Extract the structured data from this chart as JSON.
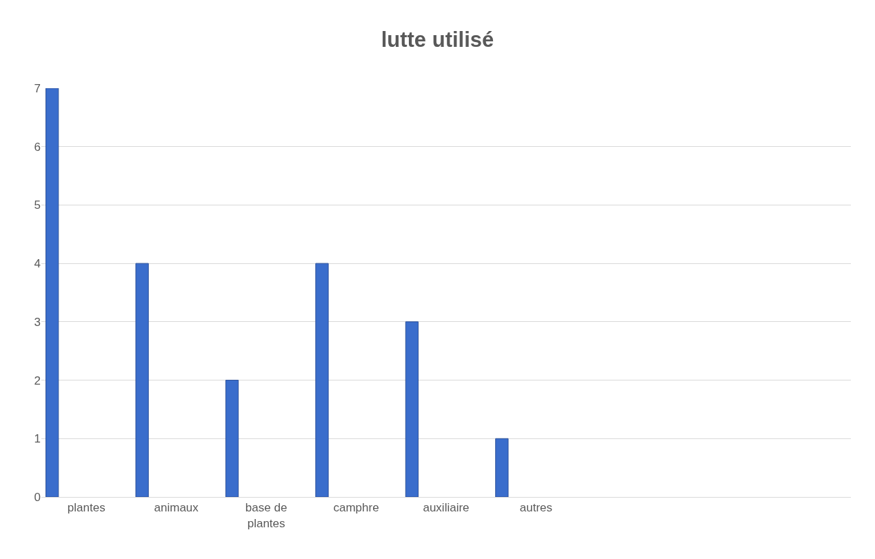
{
  "chart_data": {
    "type": "bar",
    "title": "lutte utilisé",
    "categories": [
      "plantes",
      "animaux",
      "base de plantes",
      "camphre",
      "auxiliaire",
      "autres",
      null,
      null,
      null
    ],
    "values": [
      7,
      4,
      2,
      4,
      3,
      1,
      null,
      null,
      null
    ],
    "color": "#3a6dcc",
    "ylim": [
      0,
      7
    ],
    "yticks": [
      0,
      1,
      2,
      3,
      4,
      5,
      6,
      7
    ],
    "grid": "y",
    "legend": false
  }
}
